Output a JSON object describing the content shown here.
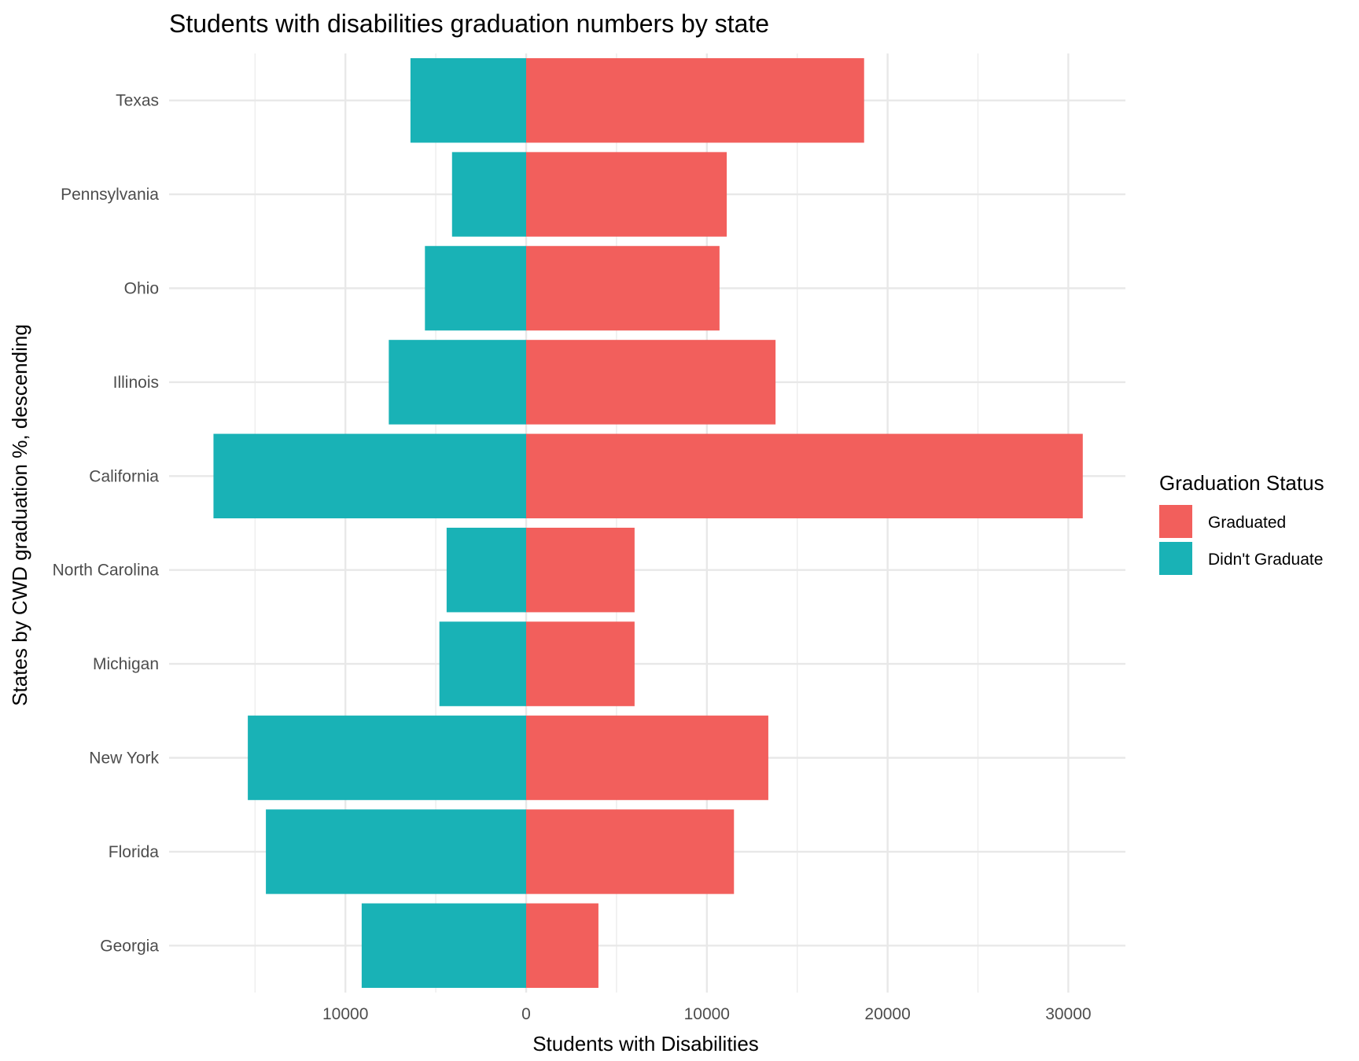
{
  "chart_data": {
    "type": "bar",
    "orientation": "horizontal-diverging",
    "title": "Students with disabilities graduation numbers by state",
    "xlabel": "Students with Disabilities",
    "ylabel": "States by CWD graduation %, descending",
    "categories": [
      "Texas",
      "Pennsylvania",
      "Ohio",
      "Illinois",
      "California",
      "North Carolina",
      "Michigan",
      "New York",
      "Florida",
      "Georgia"
    ],
    "series": [
      {
        "name": "Graduated",
        "color": "#F25F5C",
        "direction": "right",
        "values": [
          18700,
          11100,
          10700,
          13800,
          30800,
          6000,
          6000,
          13400,
          11500,
          4000
        ]
      },
      {
        "name": "Didn't Graduate",
        "color": "#19B2B6",
        "direction": "left",
        "values": [
          6400,
          4100,
          5600,
          7600,
          17300,
          4400,
          4800,
          15400,
          14400,
          9100
        ]
      }
    ],
    "xlim": [
      -19000,
      33000
    ],
    "x_ticks": [
      {
        "value": -10000,
        "label": "10000"
      },
      {
        "value": 0,
        "label": "0"
      },
      {
        "value": 10000,
        "label": "10000"
      },
      {
        "value": 20000,
        "label": "20000"
      },
      {
        "value": 30000,
        "label": "30000"
      }
    ],
    "grid": true,
    "legend": {
      "title": "Graduation Status",
      "position": "right"
    }
  }
}
